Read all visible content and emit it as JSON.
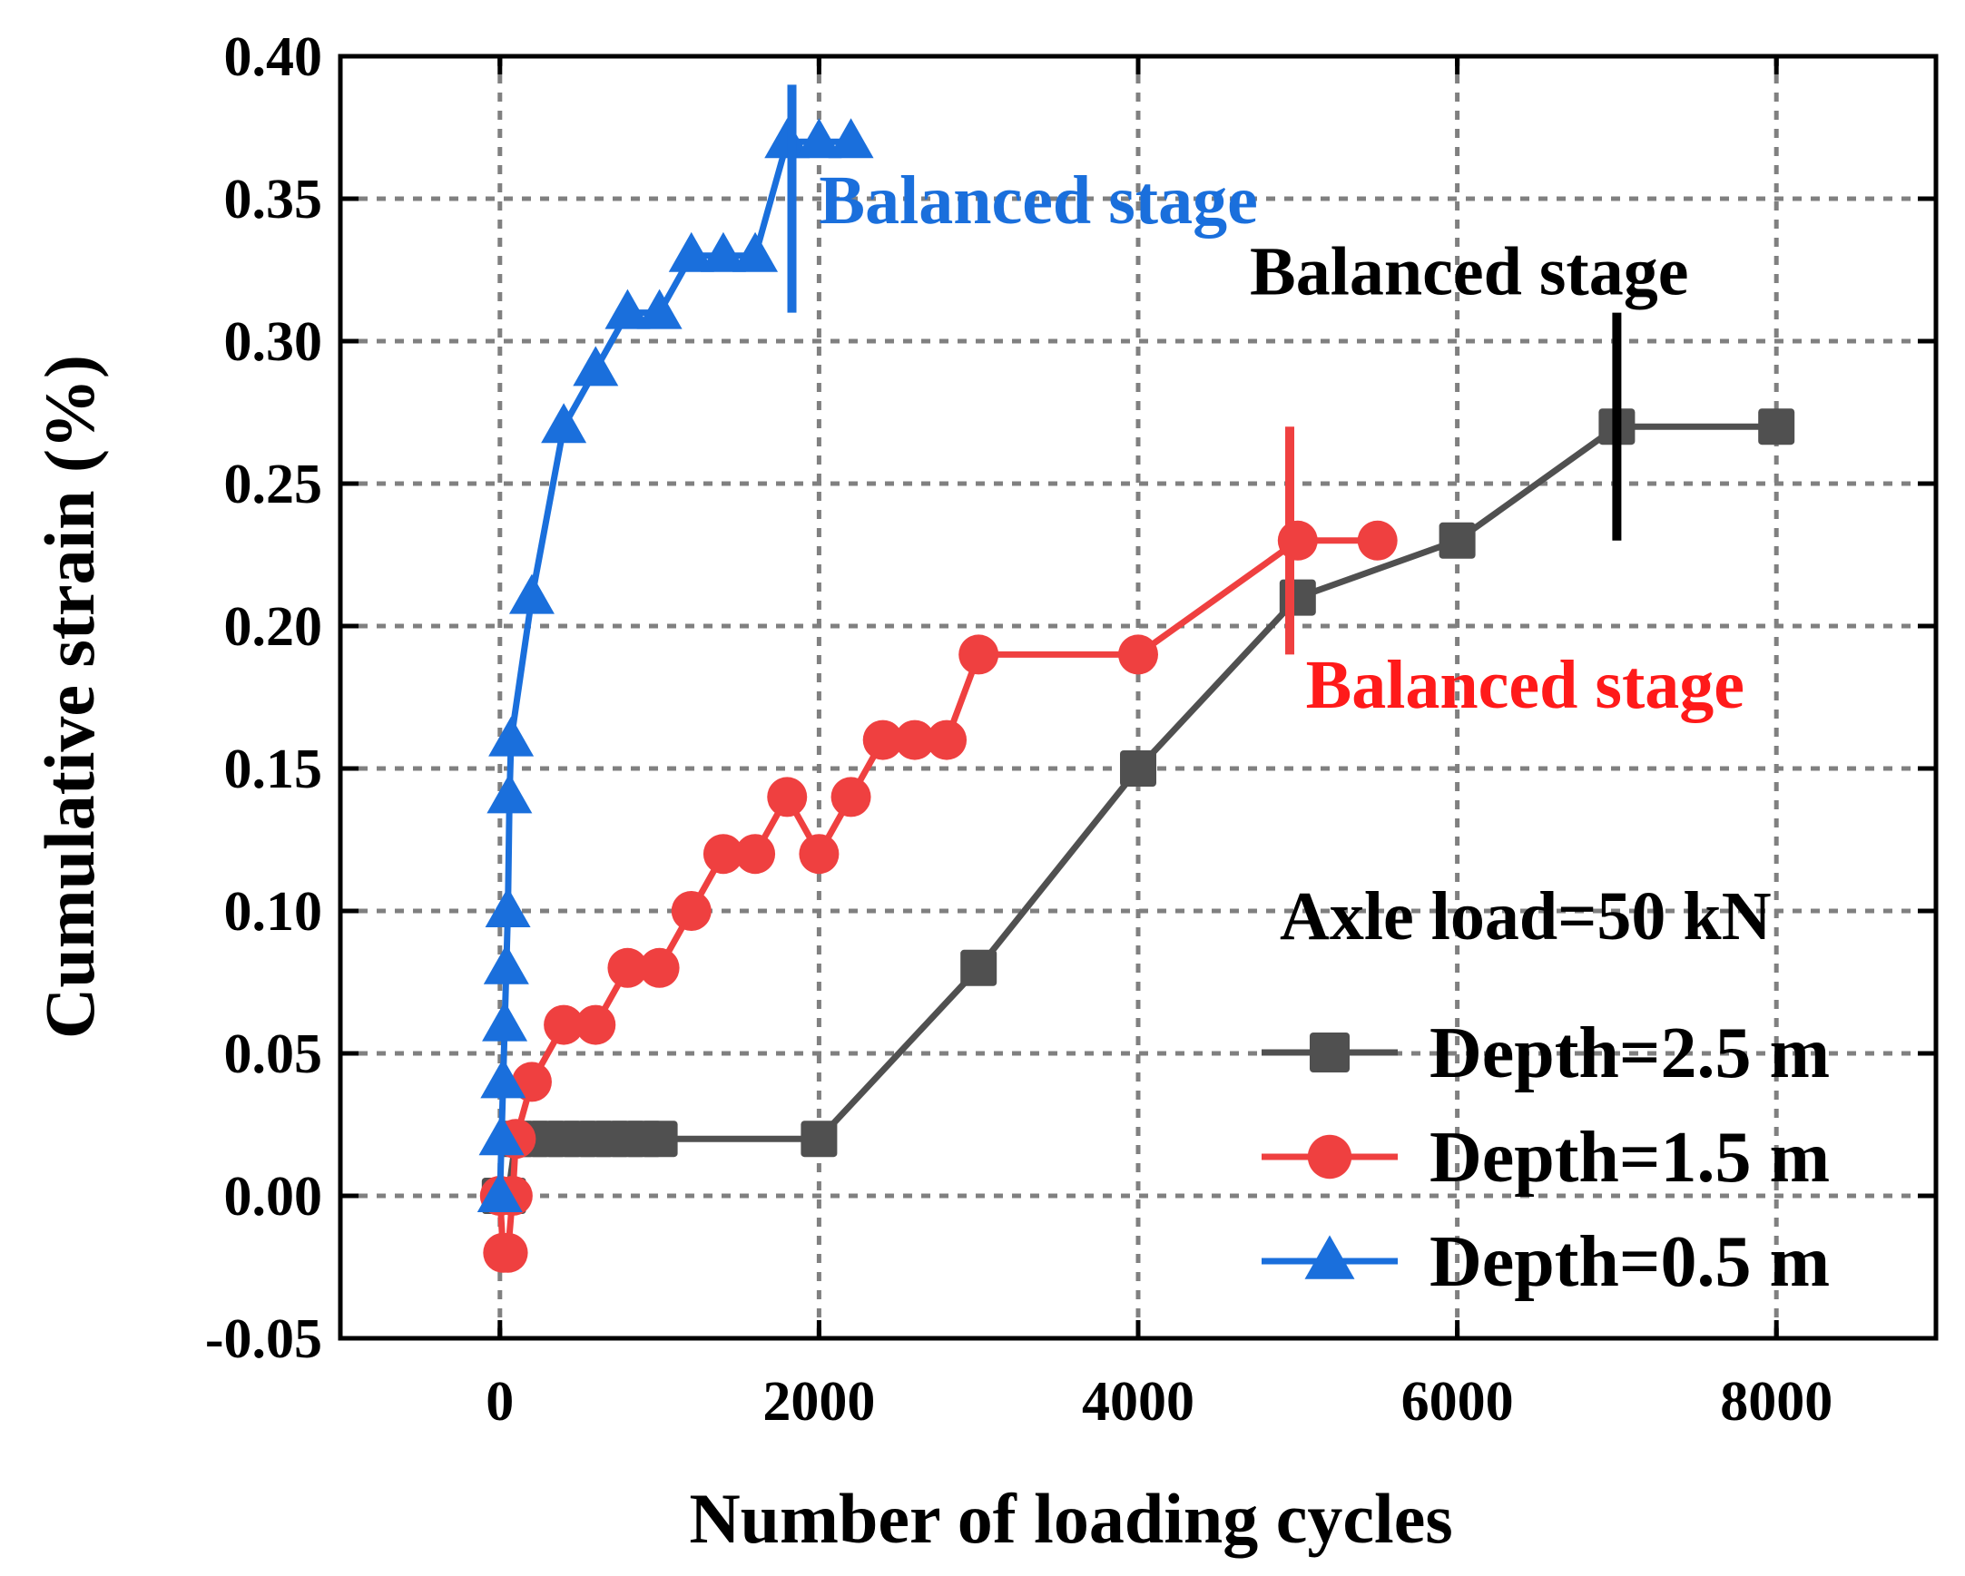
{
  "chart_data": {
    "type": "line",
    "xlabel": "Number of loading cycles",
    "ylabel": "Cumulative strain (%)",
    "xlim": [
      -1000,
      9000
    ],
    "ylim": [
      -0.05,
      0.4
    ],
    "xticks": [
      0,
      2000,
      4000,
      6000,
      8000
    ],
    "xtick_labels": [
      "0",
      "2000",
      "4000",
      "6000",
      "8000"
    ],
    "yticks": [
      -0.05,
      0,
      0.05,
      0.1,
      0.15,
      0.2,
      0.25,
      0.3,
      0.35,
      0.4
    ],
    "ytick_labels": [
      "-0.05",
      "0.00",
      "0.05",
      "0.10",
      "0.15",
      "0.20",
      "0.25",
      "0.30",
      "0.35",
      "0.40"
    ],
    "grid": true,
    "legend_title": "Axle load=50 kN",
    "legend_position": "bottom-right",
    "series": [
      {
        "name": "Depth=2.5 m",
        "color": "#505050",
        "marker": "square",
        "x": [
          0,
          50,
          100,
          200,
          300,
          400,
          500,
          600,
          700,
          800,
          900,
          1000,
          2000,
          3000,
          4000,
          5000,
          6000,
          7000,
          8000
        ],
        "y": [
          0,
          0,
          0.02,
          0.02,
          0.02,
          0.02,
          0.02,
          0.02,
          0.02,
          0.02,
          0.02,
          0.02,
          0.02,
          0.08,
          0.15,
          0.21,
          0.23,
          0.27,
          0.27
        ]
      },
      {
        "name": "Depth=1.5 m",
        "color": "#ef4040",
        "marker": "circle",
        "x": [
          0,
          20,
          50,
          80,
          100,
          200,
          400,
          600,
          800,
          1000,
          1200,
          1400,
          1600,
          1800,
          2000,
          2200,
          2400,
          2600,
          2800,
          3000,
          4000,
          5000,
          5500
        ],
        "y": [
          0,
          -0.02,
          -0.02,
          0,
          0.02,
          0.04,
          0.06,
          0.06,
          0.08,
          0.08,
          0.1,
          0.12,
          0.12,
          0.14,
          0.12,
          0.14,
          0.16,
          0.16,
          0.16,
          0.19,
          0.19,
          0.23,
          0.23
        ]
      },
      {
        "name": "Depth=0.5 m",
        "color": "#1a6fdc",
        "marker": "triangle",
        "x": [
          0,
          10,
          20,
          30,
          40,
          50,
          60,
          70,
          200,
          400,
          600,
          800,
          1000,
          1200,
          1400,
          1600,
          1800,
          2000,
          2200
        ],
        "y": [
          0,
          0.02,
          0.04,
          0.06,
          0.08,
          0.1,
          0.14,
          0.16,
          0.21,
          0.27,
          0.29,
          0.31,
          0.31,
          0.33,
          0.33,
          0.33,
          0.37,
          0.37,
          0.37
        ]
      }
    ],
    "annotations": [
      {
        "text": "Balanced stage",
        "color": "#1a6fdc",
        "marker_x": 1830,
        "marker_y": [
          0.31,
          0.39
        ],
        "x": 2000,
        "y": 0.35
      },
      {
        "text": "Balanced stage",
        "color": "#000000",
        "marker_x": 7000,
        "marker_y": [
          0.23,
          0.31
        ],
        "x": 4700,
        "y": 0.325
      },
      {
        "text": "Balanced stage",
        "color": "#ff1a1a",
        "marker_x": 4950,
        "marker_y": [
          0.19,
          0.27
        ],
        "x": 5050,
        "y": 0.18
      }
    ]
  }
}
